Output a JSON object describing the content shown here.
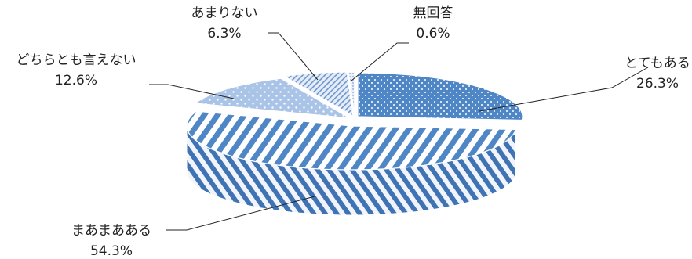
{
  "chart_data": {
    "type": "pie",
    "style": "3d-exploded",
    "title": "",
    "slices": [
      {
        "label": "とてもある",
        "value": 26.3,
        "value_label": "26.3%",
        "color": "#4f86c6",
        "pattern": "dots"
      },
      {
        "label": "まあまあある",
        "value": 54.3,
        "value_label": "54.3%",
        "color": "#4f86c6",
        "pattern": "wide-diagonal-stripes"
      },
      {
        "label": "どちらとも言えない",
        "value": 12.6,
        "value_label": "12.6%",
        "color": "#a9c4e6",
        "pattern": "diamond-dots"
      },
      {
        "label": "あまりない",
        "value": 6.3,
        "value_label": "6.3%",
        "color": "#c6d9ef",
        "pattern": "fine-diagonal-hatch"
      },
      {
        "label": "無回答",
        "value": 0.6,
        "value_label": "0.6%",
        "color": "#d6e3f3",
        "pattern": "fine-dots"
      }
    ],
    "legend": "none"
  }
}
